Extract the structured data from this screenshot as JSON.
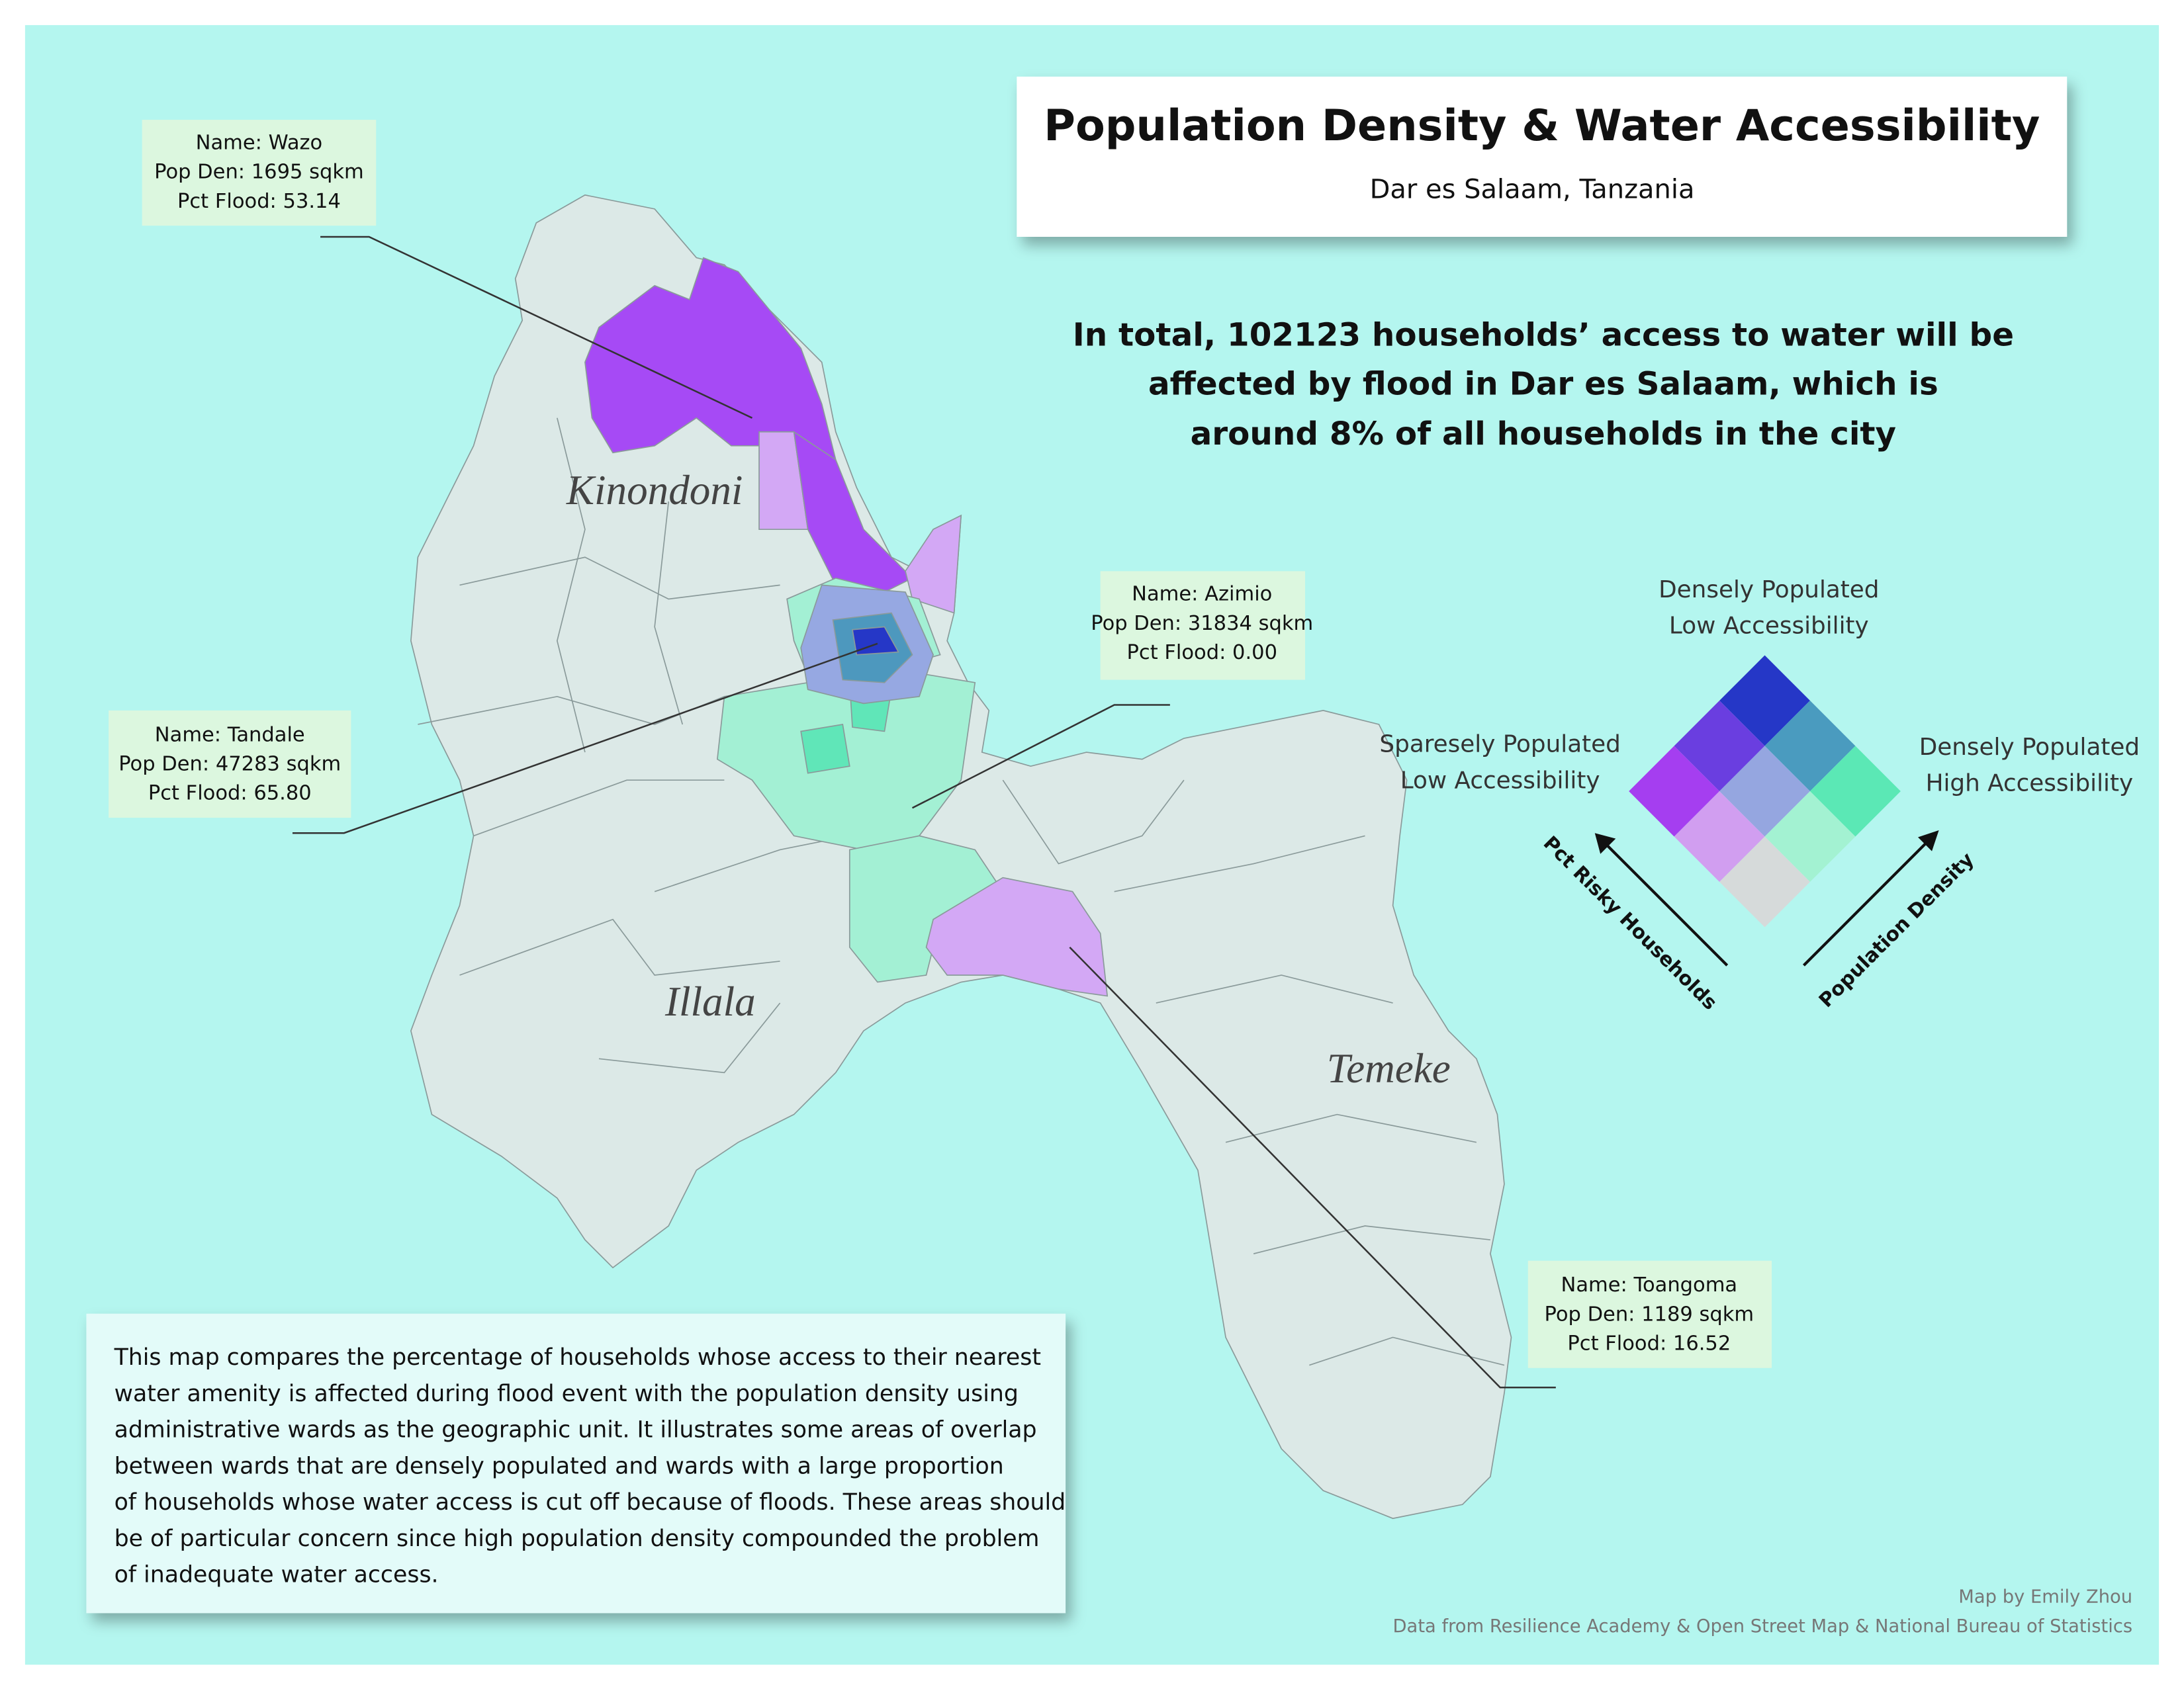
{
  "header": {
    "title": "Population Density & Water Accessibility",
    "subtitle": "Dar es Salaam, Tanzania"
  },
  "headline": [
    "In total, 102123 households’ access to water will be",
    "affected by flood in Dar es Salaam, which is",
    "around 8% of all households in the city"
  ],
  "districts": [
    "Kinondoni",
    "Illala",
    "Temeke"
  ],
  "callouts": [
    {
      "lines": [
        "Name: Wazo",
        "Pop Den: 1695 sqkm",
        "Pct Flood: 53.14"
      ]
    },
    {
      "lines": [
        "Name: Azimio",
        "Pop Den: 31834 sqkm",
        "Pct Flood: 0.00"
      ]
    },
    {
      "lines": [
        "Name: Tandale",
        "Pop Den: 47283 sqkm",
        "Pct Flood: 65.80"
      ]
    },
    {
      "lines": [
        "Name: Toangoma",
        "Pop Den: 1189 sqkm",
        "Pct Flood: 16.52"
      ]
    }
  ],
  "legend": {
    "top": [
      "Densely Populated",
      "Low Accessibility"
    ],
    "left": [
      "Sparesely Populated",
      "Low Accessibility"
    ],
    "right": [
      "Densely Populated",
      "High Accessibility"
    ],
    "y_axis": "Pct Risky Households",
    "x_axis": "Population Density"
  },
  "description": [
    "This map compares the percentage of households whose access to their nearest",
    "water amenity is affected during flood event with the population density using",
    "administrative wards as the geographic unit.  It illustrates some areas of overlap",
    "between wards that are densely populated and wards with a large proportion",
    "of households whose water access is cut off because of floods. These areas should",
    "be of particular concern since high population density compounded the problem",
    "of inadequate water access."
  ],
  "credits": [
    "Map by Emily Zhou",
    "Data from Resilience Academy & Open Street Map & National Bureau of Statistics"
  ]
}
